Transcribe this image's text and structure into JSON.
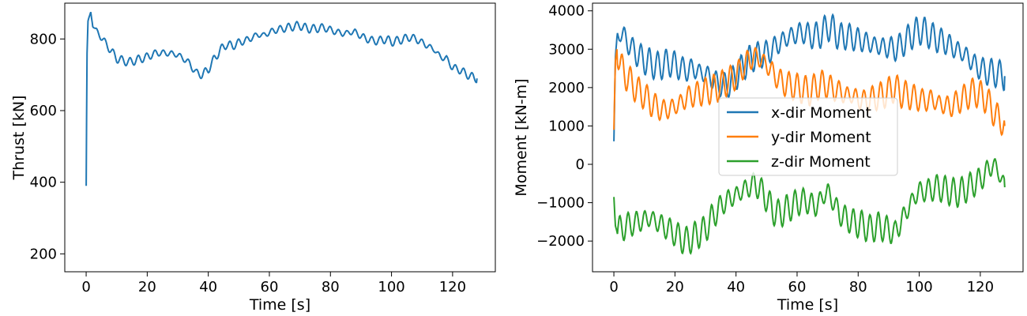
{
  "chart_data": [
    {
      "type": "line",
      "xlabel": "Time [s]",
      "ylabel": "Thrust [kN]",
      "xlim": [
        -7,
        134
      ],
      "ylim": [
        150,
        900
      ],
      "xticks": [
        0,
        20,
        40,
        60,
        80,
        100,
        120
      ],
      "yticks": [
        200,
        400,
        600,
        800
      ],
      "legend": false,
      "grid": false,
      "series": [
        {
          "color": "#1f77b4",
          "x": [
            0,
            0.3,
            0.6,
            1,
            1.5,
            2,
            3,
            5,
            7,
            9,
            10,
            12,
            14,
            16,
            18,
            20,
            22,
            24,
            26,
            28,
            30,
            32,
            34,
            36,
            38,
            40,
            42,
            44,
            46,
            48,
            50,
            52,
            54,
            56,
            58,
            60,
            62,
            64,
            66,
            68,
            70,
            72,
            74,
            76,
            78,
            80,
            82,
            84,
            86,
            88,
            90,
            92,
            94,
            96,
            98,
            100,
            102,
            104,
            106,
            108,
            110,
            112,
            114,
            116,
            118,
            120,
            122,
            124,
            126,
            128
          ],
          "values": [
            390,
            760,
            850,
            862,
            875,
            845,
            825,
            805,
            780,
            758,
            745,
            740,
            735,
            740,
            745,
            750,
            758,
            762,
            760,
            760,
            755,
            745,
            730,
            705,
            700,
            715,
            745,
            770,
            785,
            780,
            790,
            795,
            802,
            812,
            810,
            818,
            825,
            828,
            832,
            835,
            838,
            830,
            828,
            830,
            832,
            825,
            820,
            815,
            818,
            820,
            808,
            800,
            795,
            795,
            800,
            792,
            795,
            800,
            805,
            800,
            790,
            780,
            770,
            750,
            745,
            720,
            715,
            705,
            695,
            690
          ]
        }
      ]
    },
    {
      "type": "line",
      "xlabel": "Time [s]",
      "ylabel": "Moment [kN-m]",
      "xlim": [
        -7,
        134
      ],
      "ylim": [
        -2800,
        4200
      ],
      "xticks": [
        0,
        20,
        40,
        60,
        80,
        100,
        120
      ],
      "yticks": [
        -2000,
        -1000,
        0,
        1000,
        2000,
        3000,
        4000
      ],
      "ytick_labels": [
        "−2000",
        "−1000",
        "0",
        "1000",
        "2000",
        "3000",
        "4000"
      ],
      "legend": "center",
      "grid": false,
      "series": [
        {
          "name": "x-dir Moment",
          "color": "#1f77b4",
          "x": [
            0,
            0.5,
            1,
            2,
            4,
            6,
            8,
            10,
            12,
            14,
            16,
            18,
            20,
            22,
            24,
            26,
            28,
            30,
            32,
            34,
            36,
            38,
            40,
            42,
            44,
            46,
            48,
            50,
            52,
            54,
            56,
            58,
            60,
            62,
            64,
            66,
            68,
            70,
            72,
            74,
            76,
            78,
            80,
            82,
            84,
            86,
            88,
            90,
            92,
            94,
            96,
            98,
            100,
            102,
            104,
            106,
            108,
            110,
            112,
            114,
            116,
            118,
            120,
            122,
            124,
            126,
            128
          ],
          "values": [
            600,
            2800,
            3300,
            3450,
            3250,
            3000,
            2850,
            2700,
            2650,
            2550,
            2600,
            2650,
            2600,
            2500,
            2450,
            2500,
            2400,
            2350,
            2250,
            2100,
            2050,
            2100,
            2300,
            2500,
            2700,
            2800,
            2850,
            2900,
            3000,
            3150,
            3250,
            3350,
            3400,
            3450,
            3350,
            3350,
            3400,
            3600,
            3500,
            3300,
            3350,
            3300,
            3250,
            3200,
            3150,
            3100,
            3050,
            3050,
            3000,
            3100,
            3250,
            3400,
            3500,
            3450,
            3350,
            3250,
            3200,
            3100,
            3000,
            2900,
            2800,
            2600,
            2500,
            2400,
            2400,
            2350,
            2300
          ]
        },
        {
          "name": "y-dir Moment",
          "color": "#ff7f0e",
          "x": [
            0,
            0.5,
            1,
            2,
            4,
            6,
            8,
            10,
            12,
            14,
            16,
            18,
            20,
            22,
            24,
            26,
            28,
            30,
            32,
            34,
            36,
            38,
            40,
            42,
            44,
            46,
            48,
            50,
            52,
            54,
            56,
            58,
            60,
            62,
            64,
            66,
            68,
            70,
            72,
            74,
            76,
            78,
            80,
            82,
            84,
            86,
            88,
            90,
            92,
            94,
            96,
            98,
            100,
            102,
            104,
            106,
            108,
            110,
            112,
            114,
            116,
            118,
            120,
            122,
            124,
            126,
            128
          ],
          "values": [
            900,
            2700,
            3000,
            2600,
            2300,
            2100,
            1900,
            1800,
            1600,
            1500,
            1400,
            1450,
            1500,
            1600,
            1750,
            1800,
            1850,
            1900,
            1950,
            2000,
            2100,
            2200,
            2300,
            2500,
            2700,
            2800,
            2750,
            2600,
            2400,
            2200,
            2100,
            2050,
            2000,
            1950,
            1900,
            2000,
            2100,
            2050,
            1950,
            1900,
            1800,
            1800,
            1700,
            1650,
            1700,
            1750,
            1800,
            1900,
            2000,
            1850,
            1800,
            1750,
            1700,
            1650,
            1700,
            1600,
            1550,
            1500,
            1600,
            1700,
            1800,
            1900,
            1800,
            1700,
            1400,
            1200,
            1000
          ]
        },
        {
          "name": "z-dir Moment",
          "color": "#2ca02c",
          "x": [
            0,
            0.5,
            1,
            2,
            4,
            6,
            8,
            10,
            12,
            14,
            16,
            18,
            20,
            22,
            24,
            26,
            28,
            30,
            32,
            34,
            36,
            38,
            40,
            42,
            44,
            46,
            48,
            50,
            52,
            54,
            56,
            58,
            60,
            62,
            64,
            66,
            68,
            70,
            72,
            74,
            76,
            78,
            80,
            82,
            84,
            86,
            88,
            90,
            92,
            94,
            96,
            98,
            100,
            102,
            104,
            106,
            108,
            110,
            112,
            114,
            116,
            118,
            120,
            122,
            124,
            126,
            128
          ],
          "values": [
            -850,
            -1600,
            -1750,
            -1700,
            -1600,
            -1550,
            -1500,
            -1450,
            -1400,
            -1500,
            -1600,
            -1700,
            -1800,
            -1950,
            -2000,
            -1900,
            -1800,
            -1700,
            -1400,
            -1200,
            -1000,
            -900,
            -800,
            -700,
            -600,
            -500,
            -650,
            -900,
            -1200,
            -1300,
            -1200,
            -1100,
            -1000,
            -950,
            -1000,
            -1100,
            -900,
            -700,
            -1000,
            -1300,
            -1400,
            -1500,
            -1550,
            -1600,
            -1700,
            -1600,
            -1650,
            -1700,
            -1800,
            -1500,
            -1200,
            -900,
            -700,
            -700,
            -650,
            -600,
            -650,
            -700,
            -750,
            -700,
            -600,
            -500,
            -400,
            -200,
            0,
            -200,
            -600
          ]
        }
      ]
    }
  ]
}
